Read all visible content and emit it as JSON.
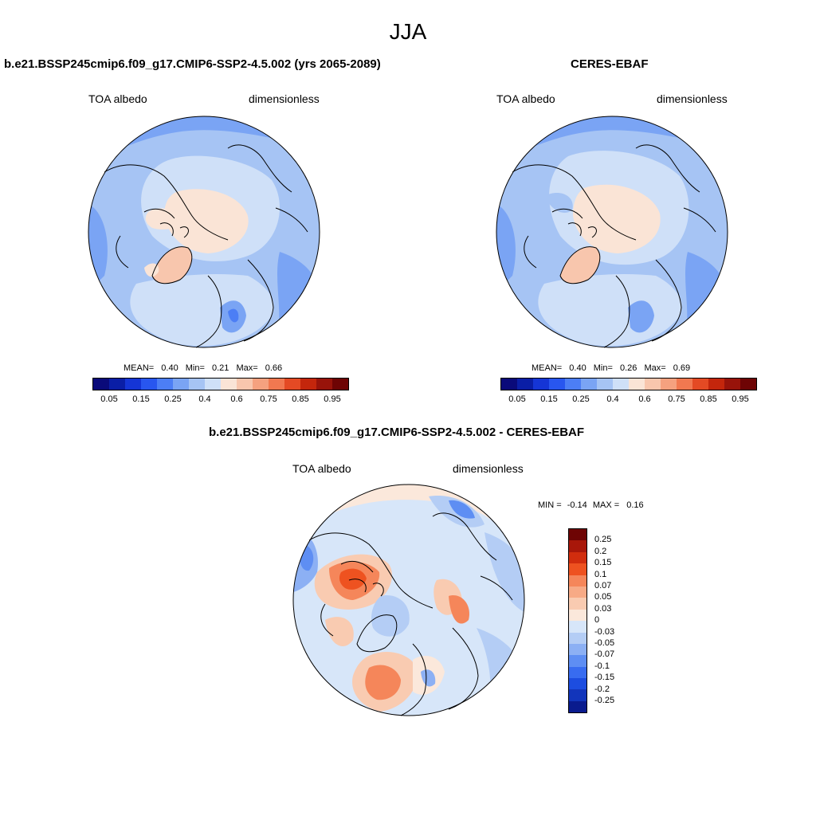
{
  "season": "JJA",
  "panels": {
    "model": {
      "title": "b.e21.BSSP245cmip6.f09_g17.CMIP6-SSP2-4.5.002 (yrs 2065-2089)",
      "left_label": "TOA albedo",
      "right_label": "dimensionless",
      "stats": {
        "mean_label": "MEAN=",
        "mean": "0.40",
        "min_label": "Min=",
        "min": "0.21",
        "max_label": "Max=",
        "max": "0.66"
      }
    },
    "obs": {
      "title": "CERES-EBAF",
      "left_label": "TOA albedo",
      "right_label": "dimensionless",
      "stats": {
        "mean_label": "MEAN=",
        "mean": "0.40",
        "min_label": "Min=",
        "min": "0.26",
        "max_label": "Max=",
        "max": "0.69"
      }
    },
    "diff": {
      "title": "b.e21.BSSP245cmip6.f09_g17.CMIP6-SSP2-4.5.002 - CERES-EBAF",
      "left_label": "TOA albedo",
      "right_label": "dimensionless",
      "stats": {
        "min_label": "MIN =",
        "min": "-0.14",
        "max_label": "MAX =",
        "max": "0.16"
      }
    }
  },
  "colorbar_main": {
    "colors": [
      "#0a0a7a",
      "#0a1ea6",
      "#1535d6",
      "#2856ef",
      "#4c7ef5",
      "#7aa4f4",
      "#a6c4f4",
      "#cfe0f8",
      "#fae4d6",
      "#f8c6ad",
      "#f5a17f",
      "#f17850",
      "#e44a24",
      "#c4260c",
      "#98130a",
      "#6e0404"
    ],
    "ticks": [
      "0.05",
      "0.15",
      "0.25",
      "0.4",
      "0.6",
      "0.75",
      "0.85",
      "0.95"
    ]
  },
  "colorbar_diff": {
    "colors": [
      "#6e0404",
      "#a8170a",
      "#d12d0e",
      "#ee5220",
      "#f5865a",
      "#f7aa86",
      "#f9cbb1",
      "#fbe8db",
      "#d7e6f9",
      "#b4cdf5",
      "#8cb0f4",
      "#5e8ef3",
      "#386cf0",
      "#1c4de0",
      "#1235bb",
      "#0a1b8e"
    ],
    "ticks": [
      "0.25",
      "0.2",
      "0.15",
      "0.1",
      "0.07",
      "0.05",
      "0.03",
      "0",
      "-0.03",
      "-0.05",
      "-0.07",
      "-0.1",
      "-0.15",
      "-0.2",
      "-0.25"
    ]
  }
}
